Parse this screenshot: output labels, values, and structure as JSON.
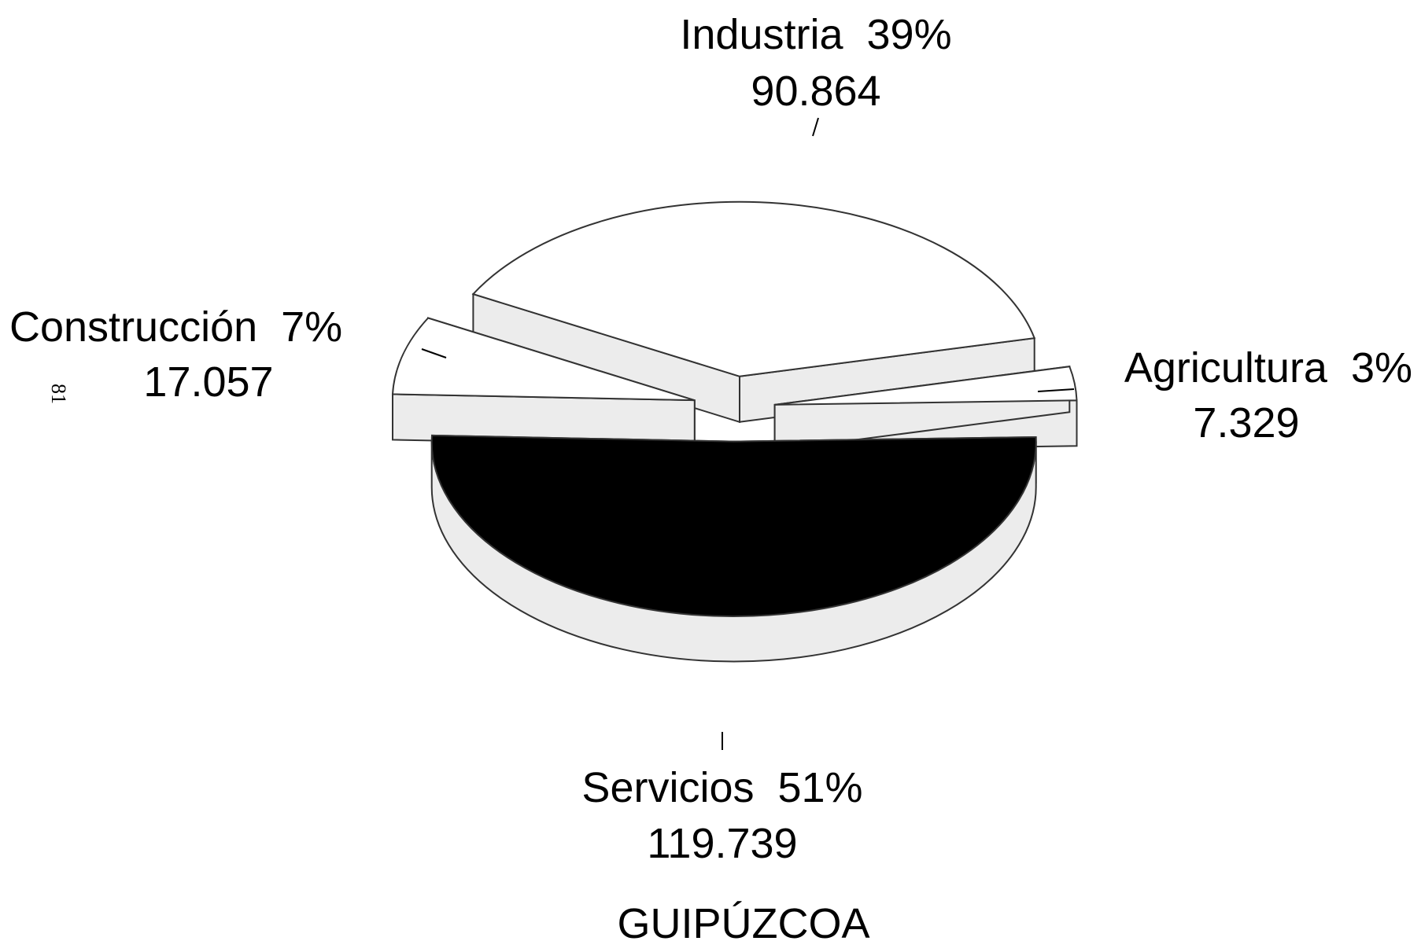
{
  "chart_data": {
    "type": "pie",
    "title": "GUIPÚZCOA",
    "page_number": "81",
    "categories": [
      "Servicios",
      "Agricultura",
      "Industria",
      "Construcción"
    ],
    "values": [
      119739,
      7329,
      90864,
      17057
    ],
    "value_labels": [
      "119.739",
      "7.329",
      "90.864",
      "17.057"
    ],
    "percentages": [
      51,
      3,
      39,
      7
    ],
    "percentage_labels": [
      "51%",
      "3%",
      "39%",
      "7%"
    ],
    "colors": [
      "#000000",
      "#ffffff",
      "#ffffff",
      "#ffffff"
    ]
  }
}
